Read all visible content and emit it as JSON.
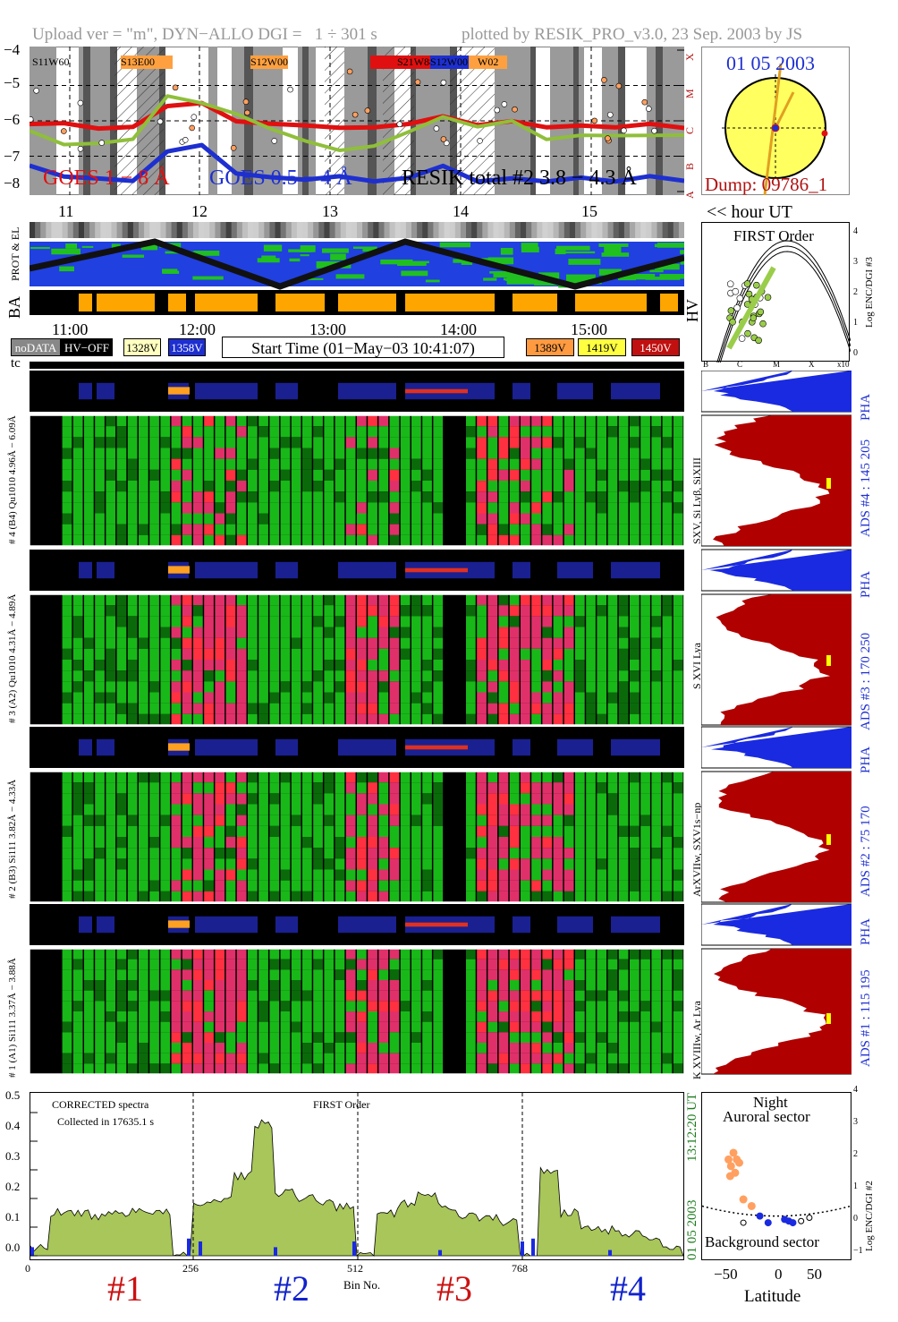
{
  "header": {
    "left": "Upload ver = \"m\", DYN−ALLO DGI =   1 ÷ 301 s",
    "right": "plotted by RESIK_PRO_v3.0, 23 Sep. 2003 by JS"
  },
  "goes_panel": {
    "ylabels": [
      "−4",
      "−5",
      "−6",
      "−7",
      "−8"
    ],
    "flare_classes": [
      "X",
      "M",
      "C",
      "B",
      "A"
    ],
    "regions": [
      {
        "label": "S11W60",
        "color": "#1e2fd0"
      },
      {
        "label": "S13E00",
        "color": "#ffa040"
      },
      {
        "label": "S12W00",
        "color": "#ffa040"
      },
      {
        "label": "S21W88",
        "color": "#e01010"
      },
      {
        "label": "S12W00",
        "color": "#1e2fd0"
      },
      {
        "label": "W02",
        "color": "#ffa040"
      }
    ],
    "legend_goes18": "GOES 1 − 8 Å",
    "legend_goes054": "GOES 0.5 − 4 Å",
    "legend_resik": "RESIK total #2  3.8 − 4.3 Å",
    "hours": [
      "11",
      "12",
      "13",
      "14",
      "15"
    ]
  },
  "sun_panel": {
    "date": "01 05 2003",
    "dump": "Dump: 09786_1",
    "hour_ut": "<< hour UT"
  },
  "orbit": {
    "label_prot": "PROT & EL",
    "label_ba": "BA",
    "label_hv": "HV"
  },
  "first_order_panel": {
    "title": "FIRST Order",
    "ylabel": "Log ENC/DGI #3",
    "yticks": [
      "0",
      "1",
      "2",
      "3",
      "4"
    ],
    "xticks": [
      "B",
      "C",
      "M",
      "X",
      "x10"
    ]
  },
  "time_axis": {
    "ticks": [
      "11:00",
      "12:00",
      "13:00",
      "14:00",
      "15:00"
    ]
  },
  "legend_row": {
    "nodata": "noDATA",
    "hvoff": "HV−OFF",
    "v1328": "1328V",
    "v1358": "1358V",
    "start": "Start Time (01−May−03 10:41:07)",
    "v1389": "1389V",
    "v1419": "1419V",
    "v1450": "1450V",
    "tc": "tc"
  },
  "channels": [
    {
      "id": "ch4",
      "pha_label": "# 4 (B4) Qu1010 4.96Å − 6.09Å",
      "side": "SXV, Si Lyβ, SiXIII",
      "ads": "ADS #4 :  145 205",
      "pha": "PHA"
    },
    {
      "id": "ch3",
      "pha_label": "# 3 (A2) Qu1010 4.31Å − 4.89Å",
      "side": "S XVI Lya",
      "ads": "ADS #3 :  170 250",
      "pha": "PHA"
    },
    {
      "id": "ch2",
      "pha_label": "# 2 (B3) Si111 3.82Å − 4.33Å",
      "side": "ArXVIIw, SXV1s−np",
      "ads": "ADS #2 :  75 170",
      "pha": "PHA"
    },
    {
      "id": "ch1",
      "pha_label": "# 1 (A1) Si111 3.37Å − 3.88Å",
      "side": "K XVIIIw, Ar Lya",
      "ads": "ADS #1 :  115 195",
      "pha": "PHA"
    }
  ],
  "spectrum": {
    "note1": "CORRECTED spectra",
    "note2": "Collected in 17635.1 s",
    "note3": "FIRST Order",
    "yticks": [
      "0.0",
      "0.1",
      "0.2",
      "0.3",
      "0.4",
      "0.5"
    ],
    "xticks": [
      "0",
      "256",
      "512",
      "768"
    ],
    "xlabel": "Bin No.",
    "vert_date": "01 05 2003",
    "vert_time": "13:12:20 UT",
    "groups": [
      {
        "label": "#1",
        "color": "#cc1111"
      },
      {
        "label": "#2",
        "color": "#1122cc"
      },
      {
        "label": "#3",
        "color": "#cc1111"
      },
      {
        "label": "#4",
        "color": "#1122cc"
      }
    ]
  },
  "latitude_panel": {
    "title1": "Night",
    "title2": "Auroral sector",
    "bottom": "Background sector",
    "ylabel": "Log ENC/DGI #2",
    "xlabel": "Latitude",
    "yticks": [
      "−1",
      "0",
      "1",
      "2",
      "3",
      "4"
    ],
    "xticks": [
      "−50",
      "0",
      "50"
    ]
  },
  "chart_data": {
    "type": "line",
    "title": "",
    "series": [
      {
        "name": "GOES 1 − 8 Å",
        "color": "#e01010",
        "y": [
          -6.05,
          -6.1,
          -6.2,
          -6.15,
          -5.6,
          -5.5,
          -6.0,
          -6.1,
          -6.15,
          -6.2,
          -6.2,
          -6.1,
          -5.9,
          -6.1,
          -6.0,
          -6.2,
          -6.15,
          -6.15,
          -6.1,
          -6.2
        ]
      },
      {
        "name": "GOES 0.5 − 4 Å",
        "color": "#1e2fd0",
        "y": [
          -7.3,
          -7.6,
          -7.6,
          -7.7,
          -6.9,
          -6.7,
          -7.5,
          -7.6,
          -7.7,
          -7.6,
          -7.7,
          -7.6,
          -7.3,
          -7.7,
          -7.6,
          -7.7,
          -7.6,
          -7.7,
          -7.6,
          -7.7
        ]
      },
      {
        "name": "RESIK total #2  3.8 − 4.3 Å",
        "color": "#8fbf3a",
        "y": [
          -6.3,
          -6.7,
          -6.6,
          -6.5,
          -5.3,
          -5.5,
          -5.8,
          -6.2,
          -6.6,
          -6.8,
          -6.7,
          -6.3,
          -5.9,
          -6.2,
          -6.0,
          -6.5,
          -6.4,
          -6.4,
          -6.4,
          -6.4
        ]
      }
    ],
    "xlabel": "",
    "ylabel": "",
    "ylim": [
      -8,
      -4
    ],
    "spectrum_values": [
      0.03,
      0.15,
      0.15,
      0.14,
      0.15,
      0.16,
      0.15,
      0.0,
      0.18,
      0.2,
      0.28,
      0.46,
      0.22,
      0.2,
      0.19,
      0.17,
      0.0,
      0.15,
      0.18,
      0.22,
      0.17,
      0.14,
      0.13,
      0.12,
      0.0,
      0.3,
      0.15,
      0.1,
      0.09,
      0.08,
      0.06,
      0.02
    ]
  }
}
